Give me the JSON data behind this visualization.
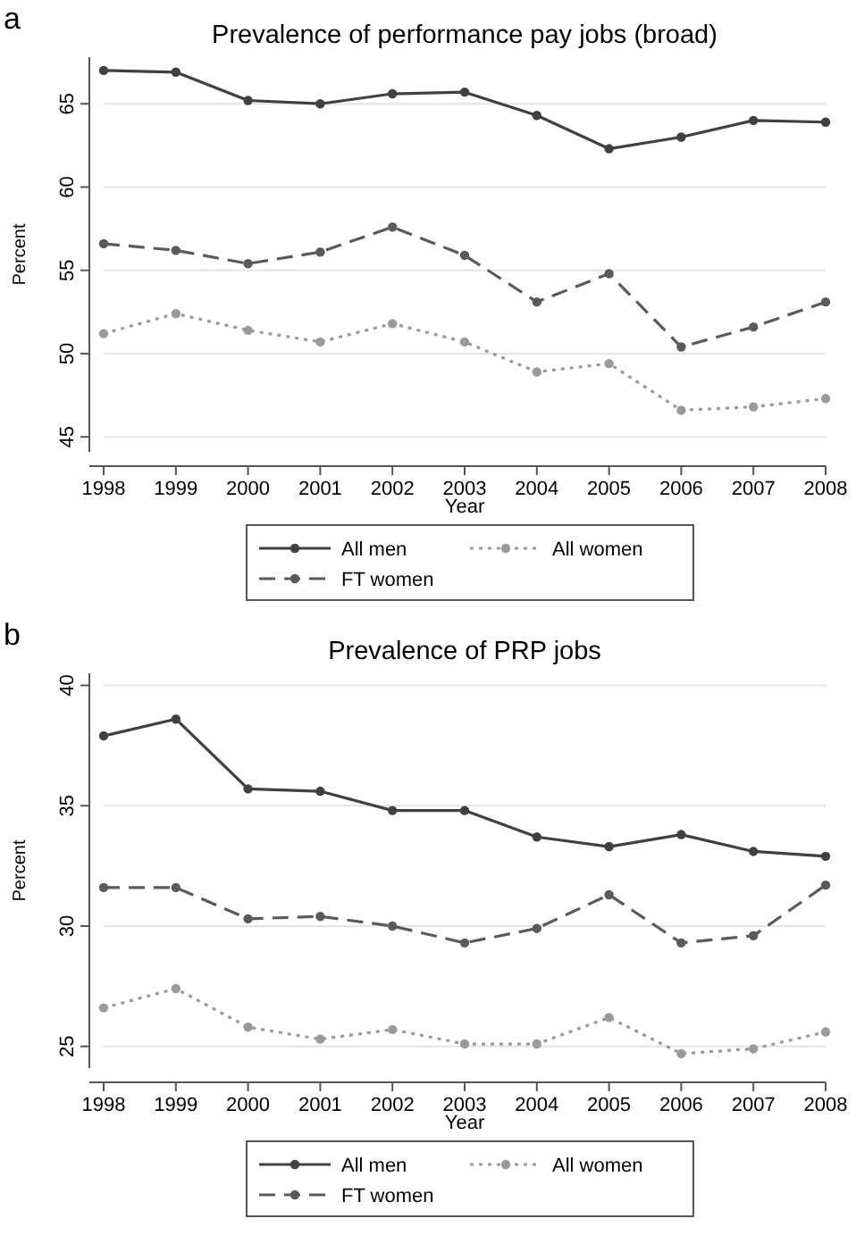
{
  "chart_data": [
    {
      "type": "line",
      "title": "Prevalence of performance pay jobs (broad)",
      "annotations": [
        "a"
      ],
      "xlabel": "Year",
      "ylabel": "Percent",
      "x": [
        1998,
        1999,
        2000,
        2001,
        2002,
        2003,
        2004,
        2005,
        2006,
        2007,
        2008
      ],
      "xlim": [
        1998,
        2008
      ],
      "xticks": [
        1998,
        1999,
        2000,
        2001,
        2002,
        2003,
        2004,
        2005,
        2006,
        2007,
        2008
      ],
      "ylim": [
        44.1,
        67.8
      ],
      "yticks": [
        45,
        50,
        55,
        60,
        65
      ],
      "grid": "y",
      "legend": "bottom",
      "marker": "circle",
      "series": [
        {
          "name": "All men",
          "color": "#404040",
          "line_style": "solid",
          "values": [
            67.0,
            66.9,
            65.2,
            65.0,
            65.6,
            65.7,
            64.3,
            62.3,
            63.0,
            64.0,
            63.9
          ]
        },
        {
          "name": "All women",
          "color": "#9a9a9a",
          "line_style": "dotted",
          "values": [
            51.2,
            52.4,
            51.4,
            50.7,
            51.8,
            50.7,
            48.9,
            49.4,
            46.6,
            46.8,
            47.3
          ]
        },
        {
          "name": "FT women",
          "color": "#5a5a5a",
          "line_style": "dashed",
          "values": [
            56.6,
            56.2,
            55.4,
            56.1,
            57.6,
            55.9,
            53.1,
            54.8,
            50.4,
            51.6,
            53.1
          ]
        }
      ]
    },
    {
      "type": "line",
      "title": "Prevalence of PRP jobs",
      "annotations": [
        "b"
      ],
      "xlabel": "Year",
      "ylabel": "Percent",
      "x": [
        1998,
        1999,
        2000,
        2001,
        2002,
        2003,
        2004,
        2005,
        2006,
        2007,
        2008
      ],
      "xlim": [
        1998,
        2008
      ],
      "xticks": [
        1998,
        1999,
        2000,
        2001,
        2002,
        2003,
        2004,
        2005,
        2006,
        2007,
        2008
      ],
      "ylim": [
        24.1,
        40.5
      ],
      "yticks": [
        25,
        30,
        35,
        40
      ],
      "grid": "y",
      "legend": "bottom",
      "marker": "circle",
      "series": [
        {
          "name": "All men",
          "color": "#404040",
          "line_style": "solid",
          "values": [
            37.9,
            38.6,
            35.7,
            35.6,
            34.8,
            34.8,
            33.7,
            33.3,
            33.8,
            33.1,
            32.9
          ]
        },
        {
          "name": "All women",
          "color": "#9a9a9a",
          "line_style": "dotted",
          "values": [
            26.6,
            27.4,
            25.8,
            25.3,
            25.7,
            25.1,
            25.1,
            26.2,
            24.7,
            24.9,
            25.6
          ]
        },
        {
          "name": "FT women",
          "color": "#5a5a5a",
          "line_style": "dashed",
          "values": [
            31.6,
            31.6,
            30.3,
            30.4,
            30.0,
            29.3,
            29.9,
            31.3,
            29.3,
            29.6,
            31.7
          ]
        }
      ]
    }
  ]
}
